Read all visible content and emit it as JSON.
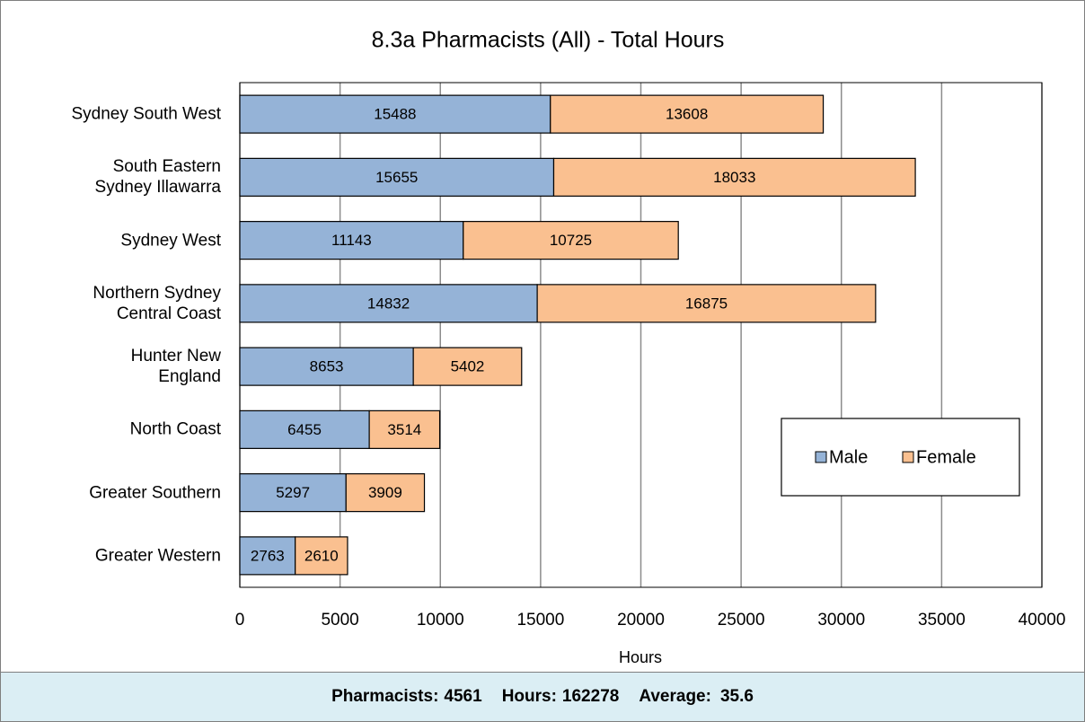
{
  "chart_data": {
    "type": "stacked_barh",
    "title": "8.3a Pharmacists (All) - Total Hours",
    "x_label": "Hours",
    "categories": [
      "Sydney South West",
      "South Eastern\nSydney Illawarra",
      "Sydney West",
      "Northern Sydney\nCentral Coast",
      "Hunter New\nEngland",
      "North Coast",
      "Greater Southern",
      "Greater Western"
    ],
    "series": [
      {
        "name": "Male",
        "color": "#95b3d7",
        "values": [
          15488,
          15655,
          11143,
          14832,
          8653,
          6455,
          5297,
          2763
        ]
      },
      {
        "name": "Female",
        "color": "#fac090",
        "values": [
          13608,
          18033,
          10725,
          16875,
          5402,
          3514,
          3909,
          2610
        ]
      }
    ],
    "xlim": [
      0,
      40000
    ],
    "xticks": [
      0,
      5000,
      10000,
      15000,
      20000,
      25000,
      30000,
      35000,
      40000
    ],
    "grid": true,
    "legend": "right"
  },
  "footer": {
    "items": [
      {
        "label": "Pharmacists:",
        "value": 4561
      },
      {
        "label": "Hours:",
        "value": 162278
      },
      {
        "label": "Average:",
        "value": 35.6
      }
    ]
  }
}
